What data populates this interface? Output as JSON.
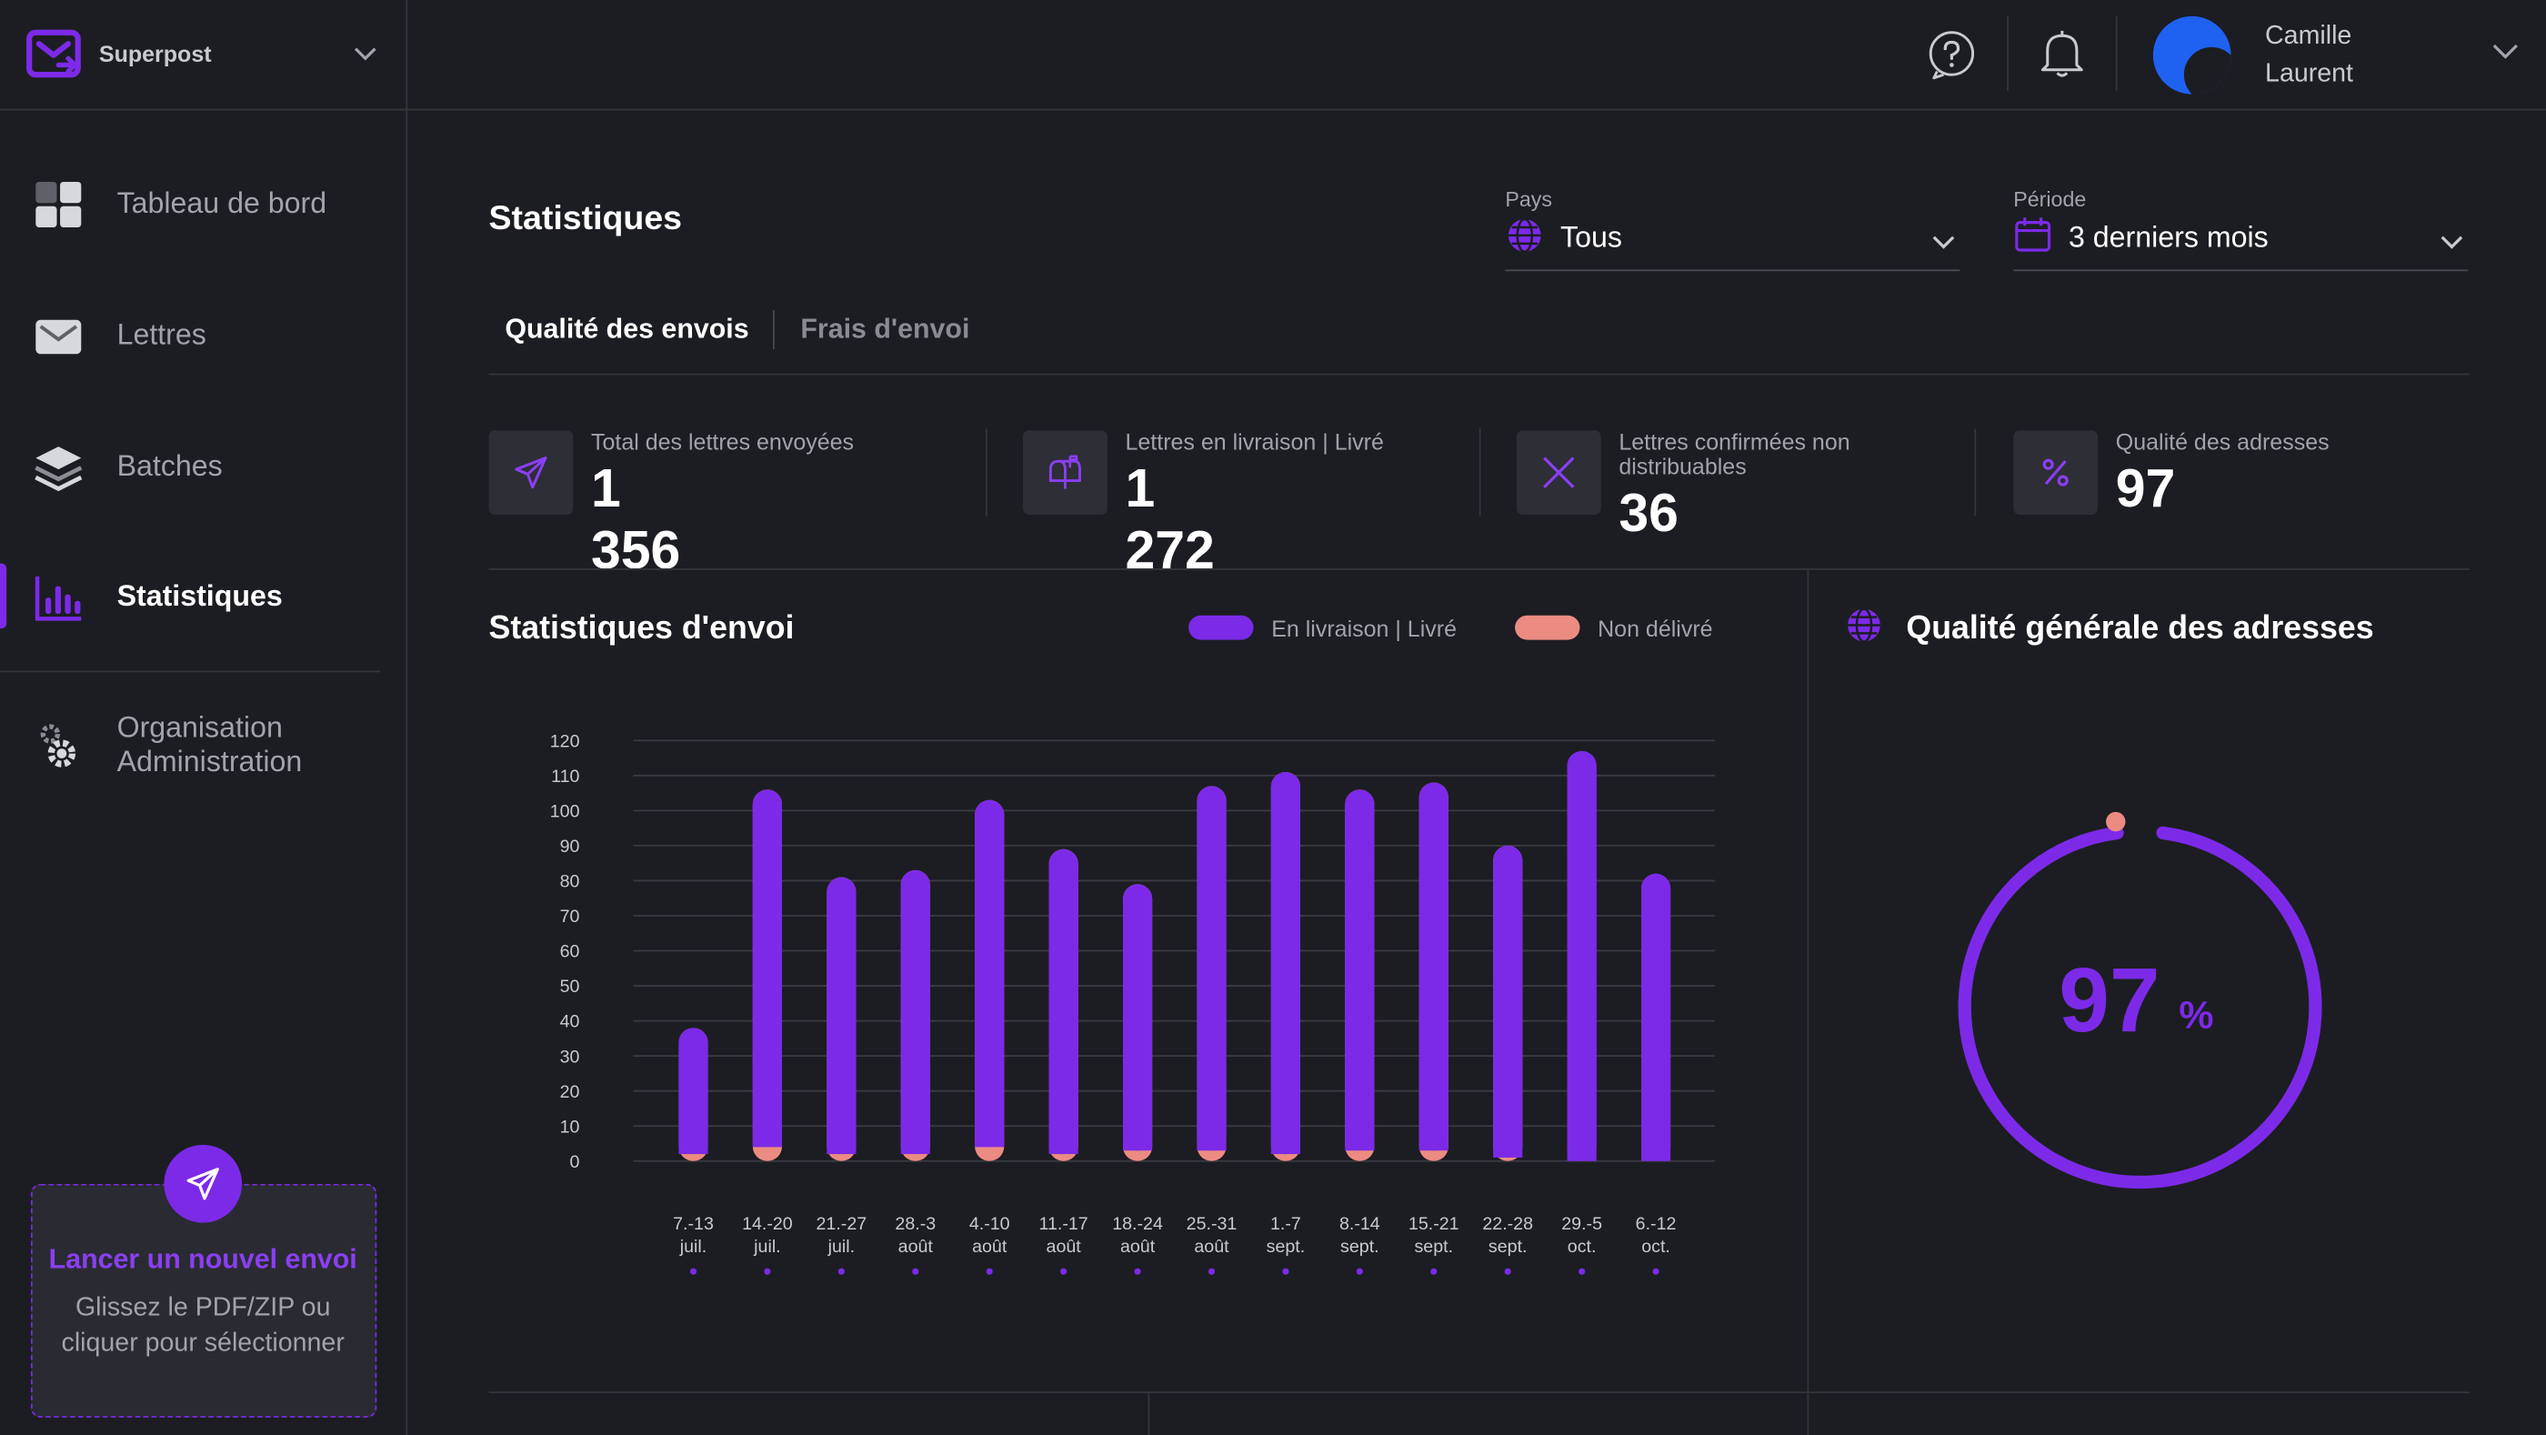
{
  "brand": {
    "name": "Superpost",
    "logo_icon": "envelope-logo-icon"
  },
  "nav": {
    "items": [
      {
        "label": "Tableau de bord",
        "icon": "dashboard-icon",
        "active": false
      },
      {
        "label": "Lettres",
        "icon": "envelope-icon",
        "active": false
      },
      {
        "label": "Batches",
        "icon": "layers-icon",
        "active": false
      },
      {
        "label": "Statistiques",
        "icon": "bar-chart-icon",
        "active": true
      }
    ],
    "org": {
      "line1": "Organisation",
      "line2": "Administration",
      "icon": "gear-icon"
    }
  },
  "upload": {
    "title": "Lancer un nouvel envoi",
    "subtitle_line1": "Glissez le PDF/ZIP ou",
    "subtitle_line2": "cliquer pour sélectionner"
  },
  "user": {
    "first_name": "Camille",
    "last_name": "Laurent"
  },
  "page": {
    "title": "Statistiques"
  },
  "filters": {
    "country": {
      "label": "Pays",
      "value": "Tous"
    },
    "period": {
      "label": "Période",
      "value": "3 derniers mois"
    }
  },
  "tabs": [
    {
      "label": "Qualité des envois",
      "active": true
    },
    {
      "label": "Frais d'envoi",
      "active": false
    }
  ],
  "kpis": [
    {
      "label": "Total des lettres envoyées",
      "value": "1 356"
    },
    {
      "label": "Lettres en livraison | Livré",
      "value": "1 272"
    },
    {
      "label_line1": "Lettres confirmées non",
      "label_line2": "distribuables",
      "value": "36"
    },
    {
      "label": "Qualité des adresses",
      "value": "97"
    }
  ],
  "sending_stats": {
    "title": "Statistiques d'envoi",
    "legend": {
      "delivered": "En livraison | Livré",
      "undelivered": "Non délivré"
    }
  },
  "address_quality": {
    "title": "Qualité générale des adresses",
    "value": "97",
    "unit": "%",
    "percent": 97
  },
  "colors": {
    "accent": "#7c2ae8",
    "undelivered": "#ec8b82",
    "background": "#1c1d22"
  },
  "chart_data": {
    "type": "bar",
    "stacked": true,
    "categories": [
      [
        "7.-13",
        "juil."
      ],
      [
        "14.-20",
        "juil."
      ],
      [
        "21.-27",
        "juil."
      ],
      [
        "28.-3",
        "août"
      ],
      [
        "4.-10",
        "août"
      ],
      [
        "11.-17",
        "août"
      ],
      [
        "18.-24",
        "août"
      ],
      [
        "25.-31",
        "août"
      ],
      [
        "1.-7",
        "sept."
      ],
      [
        "8.-14",
        "sept."
      ],
      [
        "15.-21",
        "sept."
      ],
      [
        "22.-28",
        "sept."
      ],
      [
        "29.-5",
        "oct."
      ],
      [
        "6.-12",
        "oct."
      ]
    ],
    "series": [
      {
        "name": "En livraison | Livré",
        "color": "#7c2ae8",
        "values": [
          36,
          102,
          79,
          81,
          99,
          87,
          76,
          104,
          109,
          103,
          105,
          89,
          117,
          82
        ]
      },
      {
        "name": "Non délivré",
        "color": "#ec8b82",
        "values": [
          2,
          4,
          2,
          2,
          4,
          2,
          3,
          3,
          2,
          3,
          3,
          1,
          0,
          0
        ]
      }
    ],
    "yticks": [
      0,
      10,
      20,
      30,
      40,
      50,
      60,
      70,
      80,
      90,
      100,
      110,
      120
    ],
    "ylim": [
      0,
      120
    ],
    "grid": true,
    "legend_position": "top-right"
  }
}
